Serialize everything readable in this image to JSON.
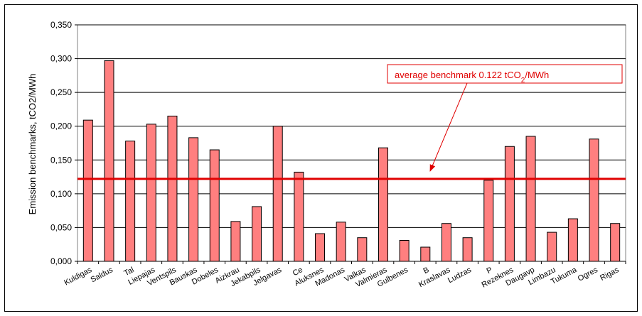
{
  "chart_data": {
    "type": "bar",
    "ylabel": "Emission benchmarks, tCO2/MWh",
    "ylim": [
      0,
      0.35
    ],
    "yticks": [
      "0,000",
      "0,050",
      "0,100",
      "0,150",
      "0,200",
      "0,250",
      "0,300",
      "0,350"
    ],
    "grid": true,
    "categories": [
      "Kuldigas",
      "Saldus",
      "Tal",
      "Liepajas",
      "Ventspils",
      "Bauskas",
      "Dobeles",
      "Aizkrau",
      "Jekabpils",
      "Jelgavas",
      "Ce",
      "Aluksnes",
      "Madonas",
      "Valkas",
      "Valmieras",
      "Gulbenes",
      "B",
      "Kraslavas",
      "Ludzas",
      "P",
      "Rezeknes",
      "Daugavp",
      "Limbazu",
      "Tukuma",
      "Ogres",
      "Rigas"
    ],
    "values": [
      0.209,
      0.297,
      0.178,
      0.203,
      0.215,
      0.183,
      0.165,
      0.059,
      0.081,
      0.2,
      0.132,
      0.041,
      0.058,
      0.035,
      0.168,
      0.031,
      0.021,
      0.056,
      0.035,
      0.12,
      0.17,
      0.185,
      0.043,
      0.063,
      0.181,
      0.056
    ],
    "bar_color": "#ff7f7f",
    "bar_stroke": "#000000",
    "average_line": {
      "value": 0.122,
      "color": "#e00000",
      "label_prefix": "average benchmark 0.122 tCO",
      "label_sub": "2",
      "label_suffix": "/MWh"
    }
  }
}
